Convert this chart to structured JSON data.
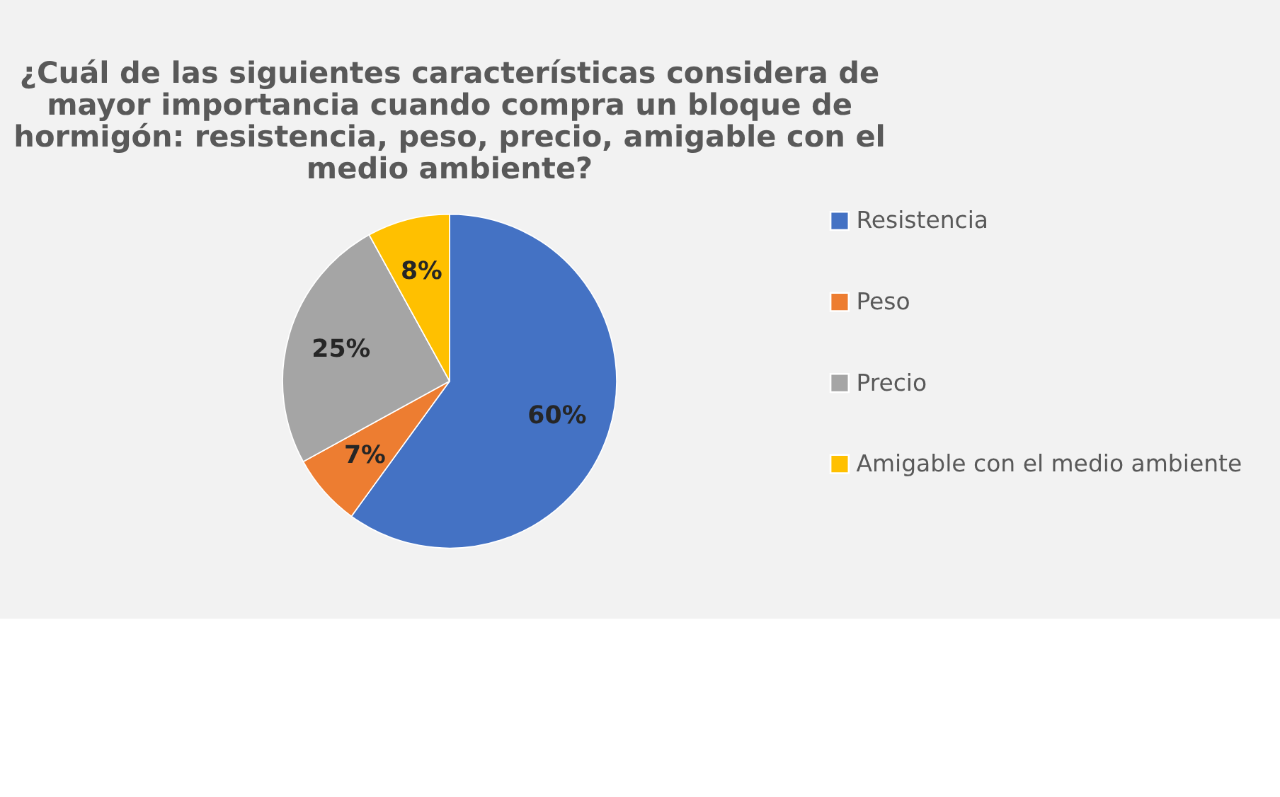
{
  "chart_data": {
    "type": "pie",
    "title": "¿Cuál de las siguientes características considera de mayor importancia cuando compra un bloque de hormigón: resistencia, peso, precio, amigable con el medio ambiente?",
    "categories": [
      "Resistencia",
      "Peso",
      "Precio",
      "Amigable con el medio ambiente"
    ],
    "values": [
      60,
      7,
      25,
      8
    ],
    "colors": [
      "#4472c4",
      "#ed7d31",
      "#a5a5a5",
      "#ffc000"
    ],
    "value_labels": [
      "60%",
      "7%",
      "25%",
      "8%"
    ],
    "legend": "right"
  }
}
